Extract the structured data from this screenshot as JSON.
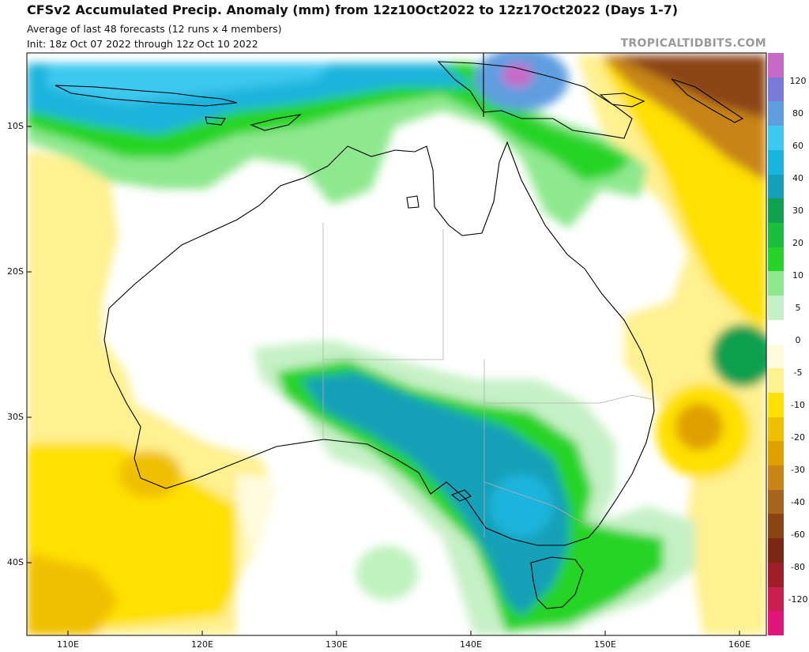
{
  "header": {
    "title": "CFSv2 Accumulated Precip. Anomaly (mm) from 12z10Oct2022 to 12z17Oct2022 (Days 1-7)",
    "subtitle1": "Average of last 48 forecasts (12 runs x 4 members)",
    "subtitle2": "Init: 18z Oct 07 2022 through 12z Oct 10 2022",
    "credit": "TROPICALTIDBITS.COM"
  },
  "axes": {
    "lat_labels": [
      "10S",
      "20S",
      "30S",
      "40S"
    ],
    "lon_labels": [
      "110E",
      "120E",
      "130E",
      "140E",
      "150E",
      "160E"
    ]
  },
  "colorbar": {
    "labels": [
      "120",
      "80",
      "60",
      "40",
      "30",
      "20",
      "10",
      "5",
      "0",
      "-5",
      "-10",
      "-20",
      "-30",
      "-40",
      "-60",
      "-80",
      "-120"
    ],
    "colors": [
      "#c869c8",
      "#7a7ad8",
      "#5e9ee0",
      "#3cc8f0",
      "#1ab4dc",
      "#14a0b8",
      "#10a050",
      "#1cbe40",
      "#28d428",
      "#8ee88e",
      "#c6f0c6",
      "#ffffff",
      "#fffadc",
      "#fff090",
      "#ffe000",
      "#f0c000",
      "#e0a000",
      "#c88414",
      "#a8641e",
      "#8c4414",
      "#7a2812",
      "#a01e28",
      "#c81e50",
      "#e0147a"
    ],
    "colors_note": "top to bottom"
  },
  "map": {
    "land_color": "#ffffff",
    "coast_color": "#000000",
    "state_border_color": "#b0b0b0"
  }
}
